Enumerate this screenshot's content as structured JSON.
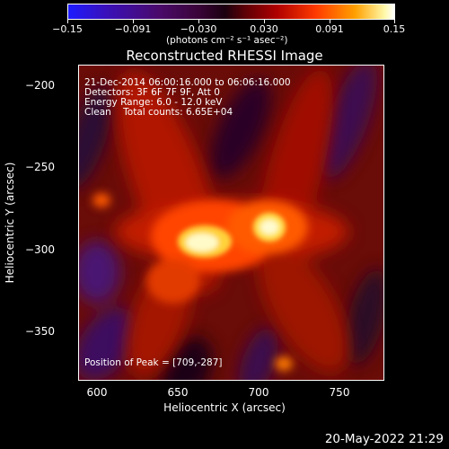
{
  "colorbar": {
    "ticks": [
      "−0.15",
      "−0.091",
      "−0.030",
      "0.030",
      "0.091",
      "0.15"
    ],
    "unit_label": "(photons cm⁻² s⁻¹ asec⁻²)"
  },
  "title": "Reconstructed RHESSI Image",
  "info": {
    "time_range": "21-Dec-2014 06:00:16.000 to 06:06:16.000",
    "detectors": "Detectors: 3F 6F 7F 9F, Att 0",
    "energy": "Energy Range: 6.0 - 12.0 keV",
    "clean": "Clean    Total counts: 6.65E+04",
    "peak": "Position of Peak = [709,-287]"
  },
  "axes": {
    "x_label": "Heliocentric X (arcsec)",
    "y_label": "Heliocentric Y (arcsec)",
    "x_ticks": [
      "600",
      "650",
      "700",
      "750"
    ],
    "y_ticks": [
      "−200",
      "−250",
      "−300",
      "−350"
    ]
  },
  "timestamp": "20-May-2022 21:29"
}
